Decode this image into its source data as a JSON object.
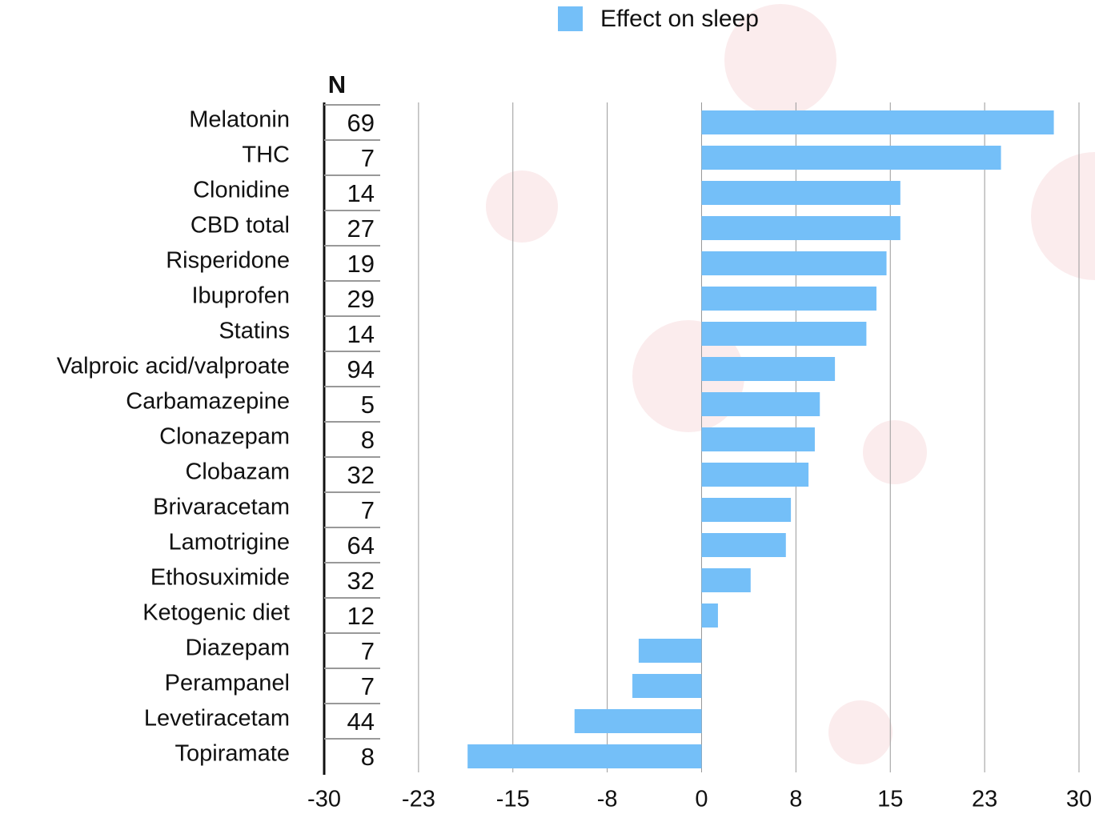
{
  "chart_data": {
    "type": "hbar",
    "categories": [
      "Melatonin",
      "THC",
      "Clonidine",
      "CBD total",
      "Risperidone",
      "Ibuprofen",
      "Statins",
      "Valproic acid/valproate",
      "Carbamazepine",
      "Clonazepam",
      "Clobazam",
      "Brivaracetam",
      "Lamotrigine",
      "Ethosuximide",
      "Ketogenic diet",
      "Diazepam",
      "Perampanel",
      "Levetiracetam",
      "Topiramate"
    ],
    "series": [
      {
        "name": "Effect on sleep",
        "color": "#74bff8",
        "values": [
          28,
          23.8,
          15.8,
          15.8,
          14.7,
          13.9,
          13.1,
          10.6,
          9.4,
          9.0,
          8.5,
          7.1,
          6.7,
          3.9,
          1.3,
          -5.0,
          -5.5,
          -10.1,
          -18.6
        ]
      }
    ],
    "n_column": {
      "title": "N",
      "values": [
        69,
        7,
        14,
        27,
        19,
        29,
        14,
        94,
        5,
        8,
        32,
        7,
        64,
        32,
        12,
        7,
        7,
        44,
        8
      ]
    },
    "xlim": [
      -30,
      30
    ],
    "xticks": [
      -30,
      {
        "value": -22.5,
        "label": "-23"
      },
      -15,
      {
        "value": -7.5,
        "label": "-8"
      },
      0,
      {
        "value": 7.5,
        "label": "8"
      },
      15,
      {
        "value": 22.5,
        "label": "23"
      },
      30
    ],
    "grid": true
  }
}
